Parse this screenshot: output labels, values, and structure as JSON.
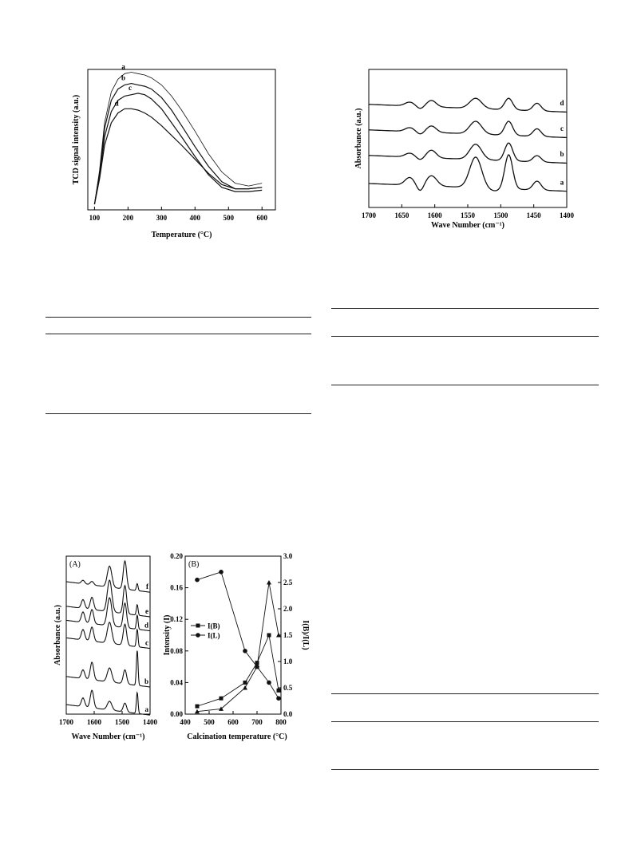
{
  "chart_data": [
    {
      "type": "line",
      "xlabel": "Temperature (°C)",
      "ylabel": "TCD signal intensity (a.u.)",
      "xlim": [
        80,
        640
      ],
      "x_ticks": [
        "100",
        "200",
        "300",
        "400",
        "500",
        "600"
      ],
      "y_ticks_labeled": false,
      "series": [
        {
          "name": "a",
          "x": [
            100,
            115,
            130,
            150,
            170,
            190,
            210,
            230,
            250,
            270,
            300,
            330,
            360,
            400,
            440,
            480,
            520,
            560,
            600
          ],
          "y": [
            0.04,
            0.28,
            0.62,
            0.84,
            0.93,
            0.97,
            0.98,
            0.97,
            0.96,
            0.94,
            0.89,
            0.81,
            0.71,
            0.56,
            0.4,
            0.27,
            0.19,
            0.17,
            0.19
          ]
        },
        {
          "name": "b",
          "x": [
            100,
            115,
            130,
            150,
            170,
            190,
            210,
            230,
            250,
            270,
            300,
            330,
            360,
            400,
            440,
            480,
            520,
            560,
            600
          ],
          "y": [
            0.04,
            0.26,
            0.58,
            0.78,
            0.86,
            0.89,
            0.9,
            0.89,
            0.88,
            0.86,
            0.8,
            0.71,
            0.6,
            0.45,
            0.31,
            0.2,
            0.15,
            0.15,
            0.16
          ]
        },
        {
          "name": "c",
          "x": [
            100,
            115,
            130,
            150,
            170,
            190,
            210,
            230,
            250,
            270,
            300,
            330,
            360,
            400,
            440,
            480,
            520,
            560,
            600
          ],
          "y": [
            0.04,
            0.24,
            0.52,
            0.7,
            0.78,
            0.81,
            0.82,
            0.83,
            0.82,
            0.79,
            0.72,
            0.62,
            0.52,
            0.38,
            0.25,
            0.16,
            0.13,
            0.13,
            0.14
          ]
        },
        {
          "name": "d",
          "x": [
            100,
            115,
            130,
            150,
            170,
            190,
            210,
            230,
            250,
            270,
            300,
            330,
            360,
            400,
            440,
            480,
            520,
            560,
            600
          ],
          "y": [
            0.04,
            0.22,
            0.46,
            0.62,
            0.69,
            0.72,
            0.72,
            0.71,
            0.69,
            0.66,
            0.6,
            0.53,
            0.46,
            0.36,
            0.26,
            0.18,
            0.15,
            0.15,
            0.16
          ]
        }
      ]
    },
    {
      "type": "line",
      "xlabel": "Wave Number (cm⁻¹)",
      "ylabel": "Absorbance (a.u.)",
      "xlim": [
        1700,
        1400
      ],
      "x_ticks": [
        "1700",
        "1650",
        "1600",
        "1550",
        "1500",
        "1450",
        "1400"
      ],
      "y_ticks_labeled": false,
      "series": [
        {
          "name": "a",
          "offset": 0.0,
          "bands": [
            [
              1638,
              0.06,
              7
            ],
            [
              1605,
              0.08,
              8
            ],
            [
              1538,
              0.24,
              9
            ],
            [
              1488,
              0.27,
              6
            ],
            [
              1445,
              0.07,
              6
            ]
          ],
          "dips": [
            [
              1622,
              0.05,
              5
            ],
            [
              1510,
              0.02,
              10
            ]
          ]
        },
        {
          "name": "b",
          "offset": 0.22,
          "bands": [
            [
              1638,
              0.03,
              7
            ],
            [
              1605,
              0.06,
              7
            ],
            [
              1538,
              0.12,
              9
            ],
            [
              1488,
              0.14,
              6
            ],
            [
              1445,
              0.05,
              6
            ]
          ],
          "dips": [
            [
              1622,
              0.02,
              5
            ]
          ]
        },
        {
          "name": "c",
          "offset": 0.42,
          "bands": [
            [
              1638,
              0.03,
              7
            ],
            [
              1605,
              0.05,
              7
            ],
            [
              1538,
              0.1,
              9
            ],
            [
              1488,
              0.11,
              6
            ],
            [
              1445,
              0.06,
              6
            ]
          ],
          "dips": [
            [
              1622,
              0.02,
              5
            ]
          ]
        },
        {
          "name": "d",
          "offset": 0.62,
          "bands": [
            [
              1638,
              0.03,
              7
            ],
            [
              1605,
              0.05,
              7
            ],
            [
              1538,
              0.08,
              9
            ],
            [
              1488,
              0.09,
              6
            ],
            [
              1445,
              0.06,
              6
            ]
          ],
          "dips": [
            [
              1622,
              0.02,
              5
            ]
          ]
        }
      ]
    },
    {
      "type": "line",
      "panel_label": "(A)",
      "xlabel": "Wave Number (cm⁻¹)",
      "ylabel": "Absorbance (a.u.)",
      "xlim": [
        1700,
        1400
      ],
      "x_ticks": [
        "1700",
        "1600",
        "1500",
        "1400"
      ],
      "y_ticks_labeled": false,
      "series": [
        {
          "name": "a",
          "offset": 0.0,
          "bands": [
            [
              1640,
              0.05,
              6
            ],
            [
              1608,
              0.1,
              6
            ],
            [
              1545,
              0.05,
              8
            ],
            [
              1490,
              0.05,
              6
            ],
            [
              1446,
              0.12,
              3
            ]
          ]
        },
        {
          "name": "b",
          "offset": 0.16,
          "bands": [
            [
              1640,
              0.05,
              6
            ],
            [
              1608,
              0.1,
              6
            ],
            [
              1545,
              0.08,
              8
            ],
            [
              1490,
              0.08,
              6
            ],
            [
              1446,
              0.2,
              3
            ]
          ]
        },
        {
          "name": "c",
          "offset": 0.38,
          "bands": [
            [
              1640,
              0.06,
              6
            ],
            [
              1608,
              0.08,
              6
            ],
            [
              1545,
              0.12,
              8
            ],
            [
              1490,
              0.12,
              6
            ],
            [
              1446,
              0.1,
              3
            ]
          ]
        },
        {
          "name": "d",
          "offset": 0.48,
          "bands": [
            [
              1640,
              0.06,
              6
            ],
            [
              1608,
              0.08,
              6
            ],
            [
              1545,
              0.16,
              8
            ],
            [
              1490,
              0.14,
              6
            ],
            [
              1446,
              0.08,
              3
            ]
          ]
        },
        {
          "name": "e",
          "offset": 0.56,
          "bands": [
            [
              1640,
              0.05,
              6
            ],
            [
              1608,
              0.07,
              6
            ],
            [
              1545,
              0.18,
              8
            ],
            [
              1490,
              0.16,
              6
            ],
            [
              1446,
              0.06,
              3
            ]
          ]
        },
        {
          "name": "f",
          "offset": 0.7,
          "bands": [
            [
              1640,
              0.02,
              6
            ],
            [
              1608,
              0.02,
              6
            ],
            [
              1545,
              0.12,
              8
            ],
            [
              1490,
              0.16,
              6
            ],
            [
              1446,
              0.04,
              3
            ]
          ]
        }
      ]
    },
    {
      "type": "line",
      "panel_label": "(B)",
      "xlabel": "Calcination temperature (°C)",
      "ylabel": "Intensity (I)",
      "y2label": "I(B)/I(L)",
      "xlim": [
        400,
        800
      ],
      "ylim": [
        0.0,
        0.2
      ],
      "y2lim": [
        0.0,
        3.0
      ],
      "x_ticks": [
        "400",
        "500",
        "600",
        "700",
        "800"
      ],
      "y_ticks": [
        "0.00",
        "0.04",
        "0.08",
        "0.12",
        "0.16",
        "0.20"
      ],
      "y2_ticks": [
        "0.0",
        "0.5",
        "1.0",
        "1.5",
        "2.0",
        "2.5",
        "3.0"
      ],
      "legend_position": "center-left",
      "series": [
        {
          "name": "I(B)",
          "marker": "square",
          "axis": "left",
          "x": [
            450,
            550,
            650,
            700,
            750,
            790
          ],
          "y": [
            0.01,
            0.02,
            0.04,
            0.065,
            0.1,
            0.03
          ]
        },
        {
          "name": "I(L)",
          "marker": "circle",
          "axis": "left",
          "x": [
            450,
            550,
            650,
            700,
            750,
            790
          ],
          "y": [
            0.17,
            0.18,
            0.08,
            0.06,
            0.04,
            0.02
          ]
        },
        {
          "marker": "triangle",
          "axis": "right",
          "x": [
            450,
            550,
            650,
            700,
            750,
            790
          ],
          "y": [
            0.05,
            0.1,
            0.5,
            0.9,
            2.5,
            1.5
          ]
        }
      ]
    }
  ]
}
